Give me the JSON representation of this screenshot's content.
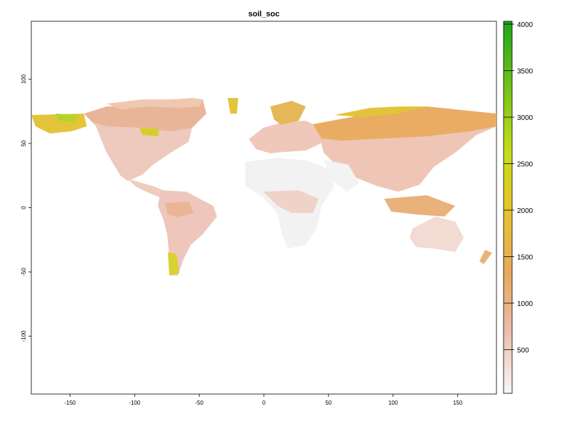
{
  "title": "soil_soc",
  "map": {
    "x_ticks": [
      "-150",
      "-100",
      "-50",
      "0",
      "50",
      "100",
      "150"
    ],
    "y_ticks": [
      "100",
      "50",
      "0",
      "-50",
      "-100"
    ],
    "x_range": [
      -180,
      180
    ],
    "y_range": [
      -145,
      145
    ]
  },
  "legend": {
    "ticks": [
      "4000",
      "3500",
      "3000",
      "2500",
      "2000",
      "1500",
      "1000",
      "500"
    ],
    "range": [
      0,
      4000
    ],
    "color_stops": [
      {
        "value": 0,
        "color": "#f7f7f7"
      },
      {
        "value": 700,
        "color": "#ecbaa8"
      },
      {
        "value": 1300,
        "color": "#e8a95c"
      },
      {
        "value": 2000,
        "color": "#e4c52c"
      },
      {
        "value": 2600,
        "color": "#c6dc18"
      },
      {
        "value": 4000,
        "color": "#1ea61e"
      }
    ]
  }
}
